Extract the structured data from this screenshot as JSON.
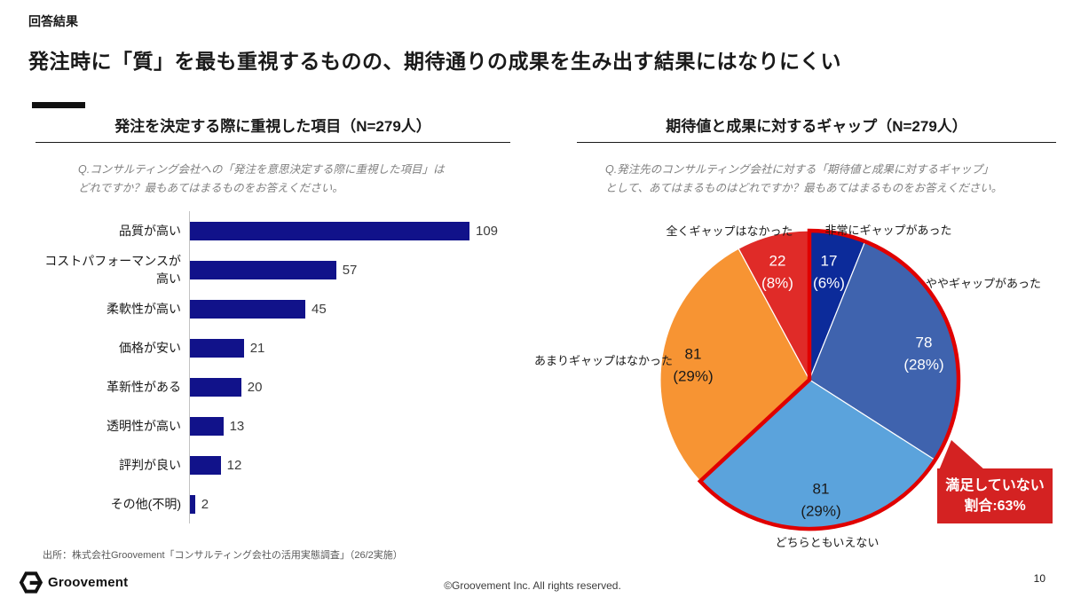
{
  "page": {
    "kicker": "回答結果",
    "title": "発注時に「質」を最も重視するものの、期待通りの成果を生み出す結果にはなりにくい",
    "source": "出所：株式会社Groovement「コンサルティング会社の活用実態調査」（26/2実施）",
    "logo_text": "Groovement",
    "copyright": "©Groovement Inc. All rights reserved.",
    "page_number": "10"
  },
  "bar_section": {
    "title": "発注を決定する際に重視した項目（N=279人）",
    "question_line1": "Q.コンサルティング会社への「発注を意思決定する際に重視した項目」は",
    "question_line2": "どれですか？最もあてはまるものをお答えください。"
  },
  "pie_section": {
    "title": "期待値と成果に対するギャップ（N=279人）",
    "question_line1": "Q.発注先のコンサルティング会社に対する「期待値と成果に対するギャップ」",
    "question_line2": "として、あてはまるものはどれですか？最もあてはまるものをお答えください。"
  },
  "callout": {
    "line1": "満足していない",
    "line2": "割合:63%"
  },
  "colors": {
    "bar": "#11128a",
    "pie_outline": "#e00000",
    "callout_bg": "#d42222",
    "axis": "#c3c3c3"
  },
  "chart_data": [
    {
      "type": "bar",
      "orientation": "horizontal",
      "title": "発注を決定する際に重視した項目（N=279人）",
      "n": 279,
      "categories": [
        "品質が高い",
        "コストパフォーマンスが高い",
        "柔軟性が高い",
        "価格が安い",
        "革新性がある",
        "透明性が高い",
        "評判が良い",
        "その他(不明)"
      ],
      "values": [
        109,
        57,
        45,
        21,
        20,
        13,
        12,
        2
      ],
      "bar_color": "#11128a",
      "xlim": [
        0,
        120
      ],
      "grid": false
    },
    {
      "type": "pie",
      "title": "期待値と成果に対するギャップ（N=279人）",
      "n": 279,
      "total": 279,
      "start_angle": "top",
      "direction": "clockwise",
      "slices": [
        {
          "label": "非常にギャップがあった",
          "value": 17,
          "pct": "6%",
          "color": "#0c2b9a",
          "outlined": true,
          "value_text_color": "#ffffff"
        },
        {
          "label": "ややギャップがあった",
          "value": 78,
          "pct": "28%",
          "color": "#3f63ae",
          "outlined": true,
          "value_text_color": "#ffffff"
        },
        {
          "label": "どちらともいえない",
          "value": 81,
          "pct": "29%",
          "color": "#5ba3dc",
          "outlined": true,
          "value_text_color": "#1a1a1a"
        },
        {
          "label": "あまりギャップはなかった",
          "value": 81,
          "pct": "29%",
          "color": "#f79433",
          "outlined": false,
          "value_text_color": "#1a1a1a"
        },
        {
          "label": "全くギャップはなかった",
          "value": 22,
          "pct": "8%",
          "color": "#e02b28",
          "outlined": false,
          "value_text_color": "#ffffff"
        }
      ],
      "annotation": "満足していない割合:63%"
    }
  ]
}
